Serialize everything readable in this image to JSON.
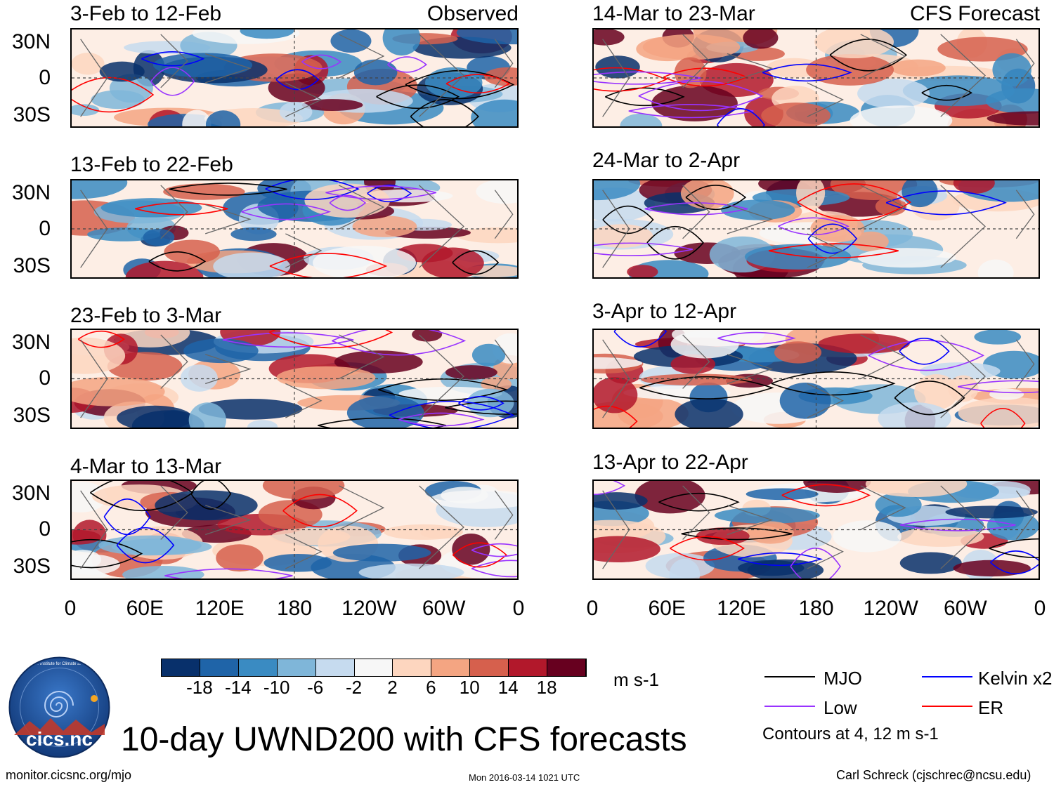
{
  "chart_data": {
    "type": "heatmap",
    "title": "10-day UWND200 with CFS forecasts",
    "units": "m s-1",
    "observed_label": "Observed",
    "forecast_label": "CFS Forecast",
    "x_ticks": [
      "0",
      "60E",
      "120E",
      "180",
      "120W",
      "60W",
      "0"
    ],
    "y_ticks": [
      "30N",
      "0",
      "30S"
    ],
    "observed_panels": [
      {
        "period": "3-Feb to 12-Feb"
      },
      {
        "period": "13-Feb to 22-Feb"
      },
      {
        "period": "23-Feb to 3-Mar"
      },
      {
        "period": "4-Mar to 13-Mar"
      }
    ],
    "forecast_panels": [
      {
        "period": "14-Mar to 23-Mar"
      },
      {
        "period": "24-Mar to 2-Apr"
      },
      {
        "period": "3-Apr to 12-Apr"
      },
      {
        "period": "13-Apr to 22-Apr"
      }
    ],
    "colorbar": {
      "labels": [
        "-18",
        "-14",
        "-10",
        "-6",
        "-2",
        "2",
        "6",
        "10",
        "14",
        "18"
      ],
      "colors": [
        "#08306b",
        "#1f64a8",
        "#3a8bc2",
        "#7fb6d9",
        "#c6dbef",
        "#f7f7f7",
        "#fdd6bf",
        "#f4a582",
        "#d6604d",
        "#b2182b",
        "#67001f"
      ]
    },
    "legend": [
      {
        "name": "MJO",
        "color": "#000000"
      },
      {
        "name": "Kelvin x2",
        "color": "#0000ff"
      },
      {
        "name": "Low",
        "color": "#9933ff"
      },
      {
        "name": "ER",
        "color": "#ff0000"
      }
    ],
    "contour_note": "Contours at 4, 12 m s-1"
  },
  "footer": {
    "url": "monitor.cicsnc.org/mjo",
    "timestamp": "Mon 2016-03-14 1021 UTC",
    "credit": "Carl Schreck (cjschrec@ncsu.edu)",
    "logo_text": "cics.nc",
    "logo_ring_text": "Cooperative Institute for Climate and Satellites"
  }
}
